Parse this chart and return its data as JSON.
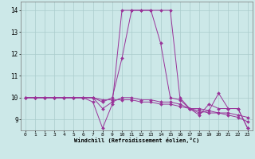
{
  "xlabel": "Windchill (Refroidissement éolien,°C)",
  "background_color": "#cce8e8",
  "line_color": "#993399",
  "grid_color": "#aacccc",
  "xlim": [
    -0.5,
    23.5
  ],
  "ylim": [
    8.5,
    14.4
  ],
  "xticks": [
    0,
    1,
    2,
    3,
    4,
    5,
    6,
    7,
    8,
    9,
    10,
    11,
    12,
    13,
    14,
    15,
    16,
    17,
    18,
    19,
    20,
    21,
    22,
    23
  ],
  "yticks": [
    9,
    10,
    11,
    12,
    13,
    14
  ],
  "series": [
    [
      10.0,
      10.0,
      10.0,
      10.0,
      10.0,
      10.0,
      10.0,
      10.0,
      9.9,
      9.9,
      9.9,
      9.9,
      9.8,
      9.8,
      9.7,
      9.7,
      9.6,
      9.5,
      9.5,
      9.4,
      9.3,
      9.3,
      9.2,
      9.1
    ],
    [
      10.0,
      10.0,
      10.0,
      10.0,
      10.0,
      10.0,
      10.0,
      9.8,
      8.6,
      9.7,
      14.0,
      14.0,
      14.0,
      14.0,
      12.5,
      10.0,
      9.9,
      9.5,
      9.3,
      9.4,
      10.2,
      9.5,
      9.5,
      8.6
    ],
    [
      10.0,
      10.0,
      10.0,
      10.0,
      10.0,
      10.0,
      10.0,
      10.0,
      9.8,
      10.0,
      11.8,
      14.0,
      14.0,
      14.0,
      14.0,
      14.0,
      10.0,
      9.5,
      9.2,
      9.7,
      9.5,
      9.5,
      9.5,
      8.6
    ],
    [
      10.0,
      10.0,
      10.0,
      10.0,
      10.0,
      10.0,
      10.0,
      10.0,
      9.5,
      9.8,
      10.0,
      10.0,
      9.9,
      9.9,
      9.8,
      9.8,
      9.7,
      9.5,
      9.4,
      9.3,
      9.3,
      9.2,
      9.1,
      8.9
    ]
  ]
}
